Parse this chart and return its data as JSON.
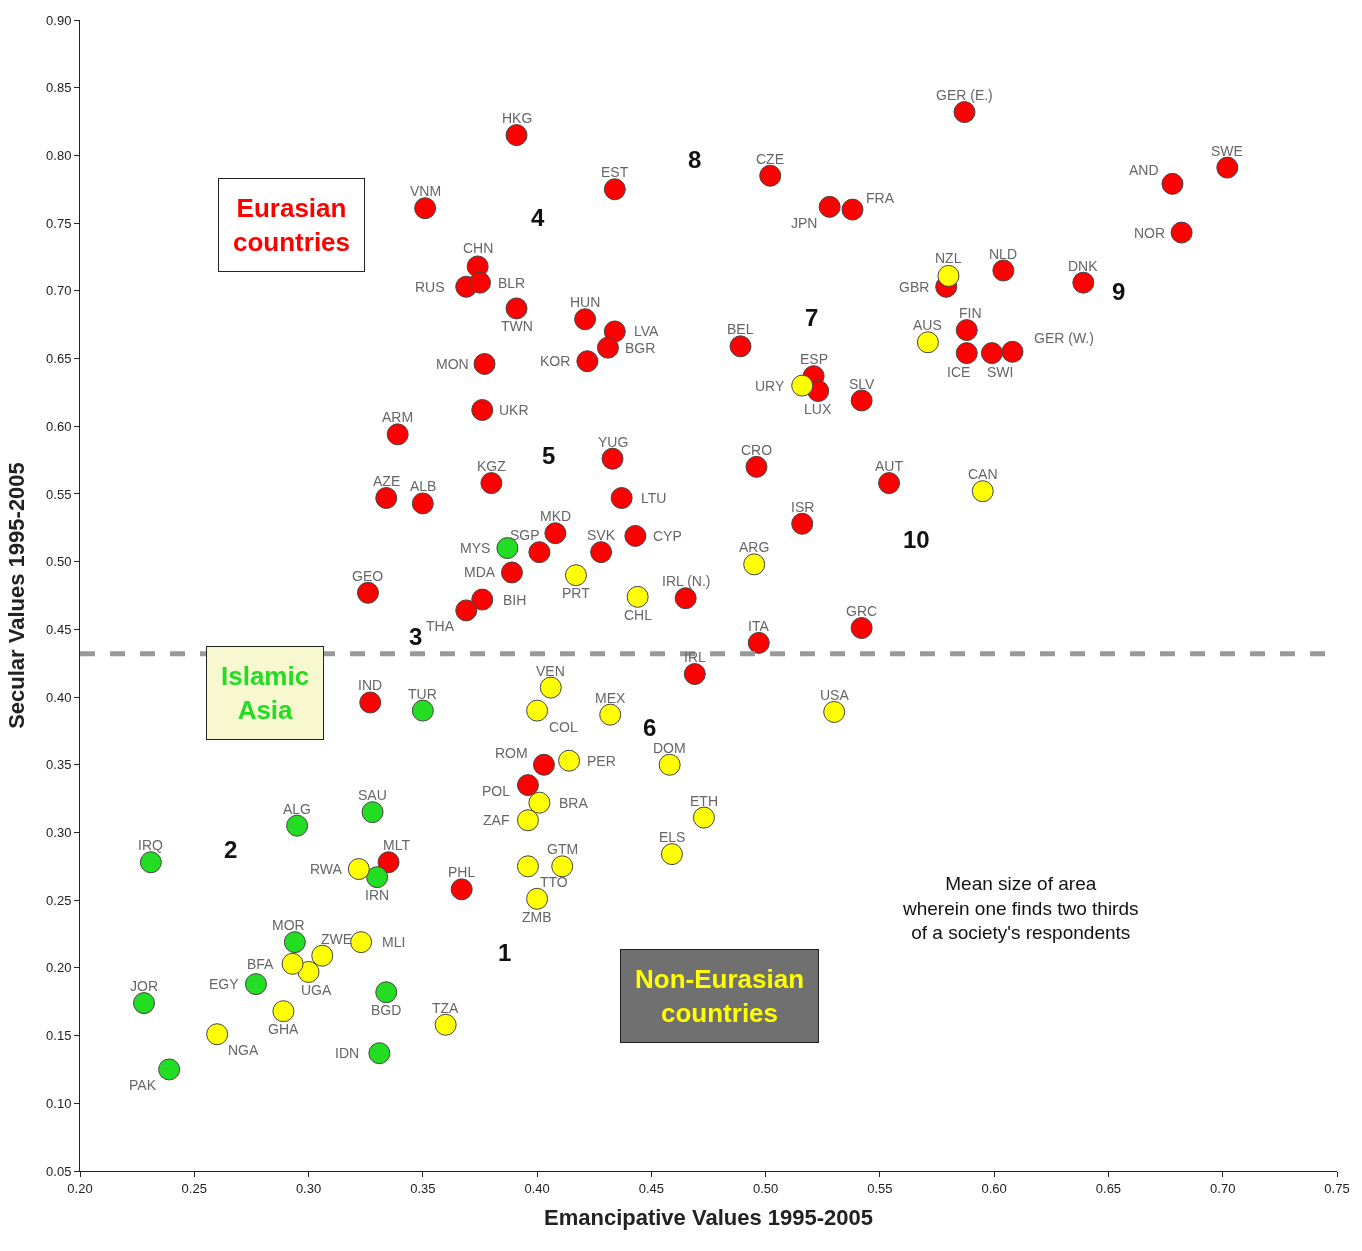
{
  "chart_data": {
    "type": "scatter",
    "xlabel": "Emancipative Values 1995-2005",
    "ylabel": "Secular Values 1995-2005",
    "xlim": [
      0.2,
      0.75
    ],
    "ylim": [
      0.05,
      0.9
    ],
    "xticks": [
      {
        "value": 0.2,
        "label": "0.20"
      },
      {
        "value": 0.25,
        "label": "0.25"
      },
      {
        "value": 0.3,
        "label": "0.30"
      },
      {
        "value": 0.35,
        "label": "0.35"
      },
      {
        "value": 0.4,
        "label": "0.40"
      },
      {
        "value": 0.45,
        "label": "0.45"
      },
      {
        "value": 0.5,
        "label": "0.50"
      },
      {
        "value": 0.55,
        "label": "0.55"
      },
      {
        "value": 0.6,
        "label": "0.60"
      },
      {
        "value": 0.65,
        "label": "0.65"
      },
      {
        "value": 0.7,
        "label": "0.70"
      },
      {
        "value": 0.75,
        "label": "0.75"
      }
    ],
    "yticks": [
      {
        "value": 0.05,
        "label": "0.05"
      },
      {
        "value": 0.1,
        "label": "0.10"
      },
      {
        "value": 0.15,
        "label": "0.15"
      },
      {
        "value": 0.2,
        "label": "0.20"
      },
      {
        "value": 0.25,
        "label": "0.25"
      },
      {
        "value": 0.3,
        "label": "0.30"
      },
      {
        "value": 0.35,
        "label": "0.35"
      },
      {
        "value": 0.4,
        "label": "0.40"
      },
      {
        "value": 0.45,
        "label": "0.45"
      },
      {
        "value": 0.5,
        "label": "0.50"
      },
      {
        "value": 0.55,
        "label": "0.55"
      },
      {
        "value": 0.6,
        "label": "0.60"
      },
      {
        "value": 0.65,
        "label": "0.65"
      },
      {
        "value": 0.7,
        "label": "0.70"
      },
      {
        "value": 0.75,
        "label": "0.75"
      },
      {
        "value": 0.8,
        "label": "0.80"
      },
      {
        "value": 0.85,
        "label": "0.85"
      },
      {
        "value": 0.9,
        "label": "0.90"
      }
    ],
    "marker": "circle",
    "legend": false,
    "series": [
      {
        "name": "Eurasian countries",
        "color": "#ff0000",
        "x": [
          0.391,
          0.434,
          0.502,
          0.587,
          0.528,
          0.538,
          0.351,
          0.374,
          0.369,
          0.375,
          0.391,
          0.421,
          0.434,
          0.431,
          0.422,
          0.377,
          0.376,
          0.339,
          0.433,
          0.38,
          0.334,
          0.35,
          0.437,
          0.408,
          0.428,
          0.401,
          0.389,
          0.376,
          0.369,
          0.326,
          0.443,
          0.465,
          0.516,
          0.542,
          0.497,
          0.554,
          0.496,
          0.489,
          0.521,
          0.523,
          0.542,
          0.579,
          0.588,
          0.588,
          0.599,
          0.608,
          0.604,
          0.639,
          0.678,
          0.702,
          0.682,
          0.469,
          0.403,
          0.396,
          0.367,
          0.327,
          0.335
        ],
        "values": [
          0.815,
          0.775,
          0.785,
          0.832,
          0.762,
          0.76,
          0.761,
          0.718,
          0.703,
          0.706,
          0.687,
          0.679,
          0.67,
          0.658,
          0.648,
          0.646,
          0.612,
          0.594,
          0.576,
          0.558,
          0.547,
          0.543,
          0.547,
          0.521,
          0.507,
          0.507,
          0.492,
          0.472,
          0.464,
          0.477,
          0.519,
          0.473,
          0.528,
          0.451,
          0.44,
          0.558,
          0.57,
          0.659,
          0.637,
          0.626,
          0.619,
          0.703,
          0.671,
          0.654,
          0.654,
          0.655,
          0.715,
          0.706,
          0.779,
          0.791,
          0.743,
          0.417,
          0.35,
          0.335,
          0.258,
          0.396,
          0.278
        ]
      },
      {
        "name": "Islamic Asia",
        "color": "#22dd22",
        "x": [
          0.387,
          0.35,
          0.328,
          0.295,
          0.231,
          0.33,
          0.294,
          0.277,
          0.228,
          0.334,
          0.331,
          0.239
        ],
        "values": [
          0.51,
          0.39,
          0.315,
          0.305,
          0.278,
          0.267,
          0.219,
          0.188,
          0.174,
          0.182,
          0.137,
          0.125
        ]
      },
      {
        "name": "Non-Eurasian countries",
        "color": "#ffff00",
        "x": [
          0.417,
          0.444,
          0.495,
          0.595,
          0.516,
          0.58,
          0.571,
          0.53,
          0.406,
          0.4,
          0.432,
          0.414,
          0.401,
          0.396,
          0.458,
          0.473,
          0.459,
          0.411,
          0.396,
          0.4,
          0.322,
          0.306,
          0.3,
          0.293,
          0.323,
          0.289,
          0.36,
          0.26
        ],
        "values": [
          0.49,
          0.474,
          0.498,
          0.552,
          0.63,
          0.711,
          0.662,
          0.389,
          0.407,
          0.39,
          0.387,
          0.353,
          0.322,
          0.309,
          0.35,
          0.311,
          0.284,
          0.275,
          0.275,
          0.251,
          0.273,
          0.209,
          0.197,
          0.203,
          0.219,
          0.168,
          0.158,
          0.151
        ]
      }
    ],
    "ref_lines": [
      {
        "axis": "y",
        "value": 0.432,
        "color": "#999999",
        "line_style": "dashed"
      }
    ],
    "annotations": [
      {
        "text": "HKG",
        "x": 0.391,
        "y": 0.815
      },
      {
        "text": "EST",
        "x": 0.434,
        "y": 0.775
      },
      {
        "text": "CZE",
        "x": 0.502,
        "y": 0.785
      },
      {
        "text": "GER (E.)",
        "x": 0.587,
        "y": 0.832
      },
      {
        "text": "JPN",
        "x": 0.528,
        "y": 0.762
      },
      {
        "text": "FRA",
        "x": 0.538,
        "y": 0.76
      },
      {
        "text": "VNM",
        "x": 0.351,
        "y": 0.761
      },
      {
        "text": "CHN",
        "x": 0.374,
        "y": 0.718
      },
      {
        "text": "RUS",
        "x": 0.369,
        "y": 0.703
      },
      {
        "text": "BLR",
        "x": 0.375,
        "y": 0.706
      },
      {
        "text": "TWN",
        "x": 0.391,
        "y": 0.687
      },
      {
        "text": "HUN",
        "x": 0.421,
        "y": 0.679
      },
      {
        "text": "LVA",
        "x": 0.434,
        "y": 0.67
      },
      {
        "text": "BGR",
        "x": 0.431,
        "y": 0.658
      },
      {
        "text": "KOR",
        "x": 0.422,
        "y": 0.648
      },
      {
        "text": "MON",
        "x": 0.377,
        "y": 0.646
      },
      {
        "text": "UKR",
        "x": 0.376,
        "y": 0.612
      },
      {
        "text": "ARM",
        "x": 0.339,
        "y": 0.594
      },
      {
        "text": "YUG",
        "x": 0.433,
        "y": 0.576
      },
      {
        "text": "KGZ",
        "x": 0.38,
        "y": 0.558
      },
      {
        "text": "AZE",
        "x": 0.334,
        "y": 0.547
      },
      {
        "text": "ALB",
        "x": 0.35,
        "y": 0.543
      },
      {
        "text": "LTU",
        "x": 0.437,
        "y": 0.547
      },
      {
        "text": "MKD",
        "x": 0.408,
        "y": 0.521
      },
      {
        "text": "SVK",
        "x": 0.428,
        "y": 0.507
      },
      {
        "text": "SGP",
        "x": 0.401,
        "y": 0.507
      },
      {
        "text": "MDA",
        "x": 0.389,
        "y": 0.492
      },
      {
        "text": "BIH",
        "x": 0.376,
        "y": 0.472
      },
      {
        "text": "THA",
        "x": 0.369,
        "y": 0.464
      },
      {
        "text": "GEO",
        "x": 0.326,
        "y": 0.477
      },
      {
        "text": "CYP",
        "x": 0.443,
        "y": 0.519
      },
      {
        "text": "IRL (N.)",
        "x": 0.465,
        "y": 0.473
      },
      {
        "text": "ISR",
        "x": 0.516,
        "y": 0.528
      },
      {
        "text": "GRC",
        "x": 0.542,
        "y": 0.451
      },
      {
        "text": "ITA",
        "x": 0.497,
        "y": 0.44
      },
      {
        "text": "AUT",
        "x": 0.554,
        "y": 0.558
      },
      {
        "text": "CRO",
        "x": 0.496,
        "y": 0.57
      },
      {
        "text": "BEL",
        "x": 0.489,
        "y": 0.659
      },
      {
        "text": "ESP",
        "x": 0.521,
        "y": 0.637
      },
      {
        "text": "LUX",
        "x": 0.523,
        "y": 0.626
      },
      {
        "text": "SLV",
        "x": 0.542,
        "y": 0.619
      },
      {
        "text": "GBR",
        "x": 0.579,
        "y": 0.703
      },
      {
        "text": "FIN",
        "x": 0.588,
        "y": 0.671
      },
      {
        "text": "ICE",
        "x": 0.588,
        "y": 0.654
      },
      {
        "text": "SWI",
        "x": 0.599,
        "y": 0.654
      },
      {
        "text": "GER (W.)",
        "x": 0.608,
        "y": 0.655
      },
      {
        "text": "NLD",
        "x": 0.604,
        "y": 0.715
      },
      {
        "text": "DNK",
        "x": 0.639,
        "y": 0.706
      },
      {
        "text": "AND",
        "x": 0.678,
        "y": 0.779
      },
      {
        "text": "SWE",
        "x": 0.702,
        "y": 0.791
      },
      {
        "text": "NOR",
        "x": 0.682,
        "y": 0.743
      },
      {
        "text": "IRL",
        "x": 0.469,
        "y": 0.417
      },
      {
        "text": "ROM",
        "x": 0.403,
        "y": 0.35
      },
      {
        "text": "POL",
        "x": 0.396,
        "y": 0.335
      },
      {
        "text": "PHL",
        "x": 0.367,
        "y": 0.258
      },
      {
        "text": "IND",
        "x": 0.327,
        "y": 0.396
      },
      {
        "text": "MLT",
        "x": 0.335,
        "y": 0.278
      },
      {
        "text": "MYS",
        "x": 0.387,
        "y": 0.51
      },
      {
        "text": "TUR",
        "x": 0.35,
        "y": 0.39
      },
      {
        "text": "SAU",
        "x": 0.328,
        "y": 0.315
      },
      {
        "text": "ALG",
        "x": 0.295,
        "y": 0.305
      },
      {
        "text": "IRQ",
        "x": 0.231,
        "y": 0.278
      },
      {
        "text": "IRN",
        "x": 0.33,
        "y": 0.267
      },
      {
        "text": "MOR",
        "x": 0.294,
        "y": 0.219
      },
      {
        "text": "EGY",
        "x": 0.277,
        "y": 0.188
      },
      {
        "text": "JOR",
        "x": 0.228,
        "y": 0.174
      },
      {
        "text": "BGD",
        "x": 0.334,
        "y": 0.182
      },
      {
        "text": "IDN",
        "x": 0.331,
        "y": 0.137
      },
      {
        "text": "PAK",
        "x": 0.239,
        "y": 0.125
      },
      {
        "text": "PRT",
        "x": 0.417,
        "y": 0.49
      },
      {
        "text": "CHL",
        "x": 0.444,
        "y": 0.474
      },
      {
        "text": "ARG",
        "x": 0.495,
        "y": 0.498
      },
      {
        "text": "CAN",
        "x": 0.595,
        "y": 0.552
      },
      {
        "text": "URY",
        "x": 0.516,
        "y": 0.63
      },
      {
        "text": "NZL",
        "x": 0.58,
        "y": 0.711
      },
      {
        "text": "AUS",
        "x": 0.571,
        "y": 0.662
      },
      {
        "text": "USA",
        "x": 0.53,
        "y": 0.389
      },
      {
        "text": "VEN",
        "x": 0.406,
        "y": 0.407
      },
      {
        "text": "COL",
        "x": 0.4,
        "y": 0.39
      },
      {
        "text": "MEX",
        "x": 0.432,
        "y": 0.387
      },
      {
        "text": "PER",
        "x": 0.414,
        "y": 0.353
      },
      {
        "text": "BRA",
        "x": 0.401,
        "y": 0.322
      },
      {
        "text": "ZAF",
        "x": 0.396,
        "y": 0.309
      },
      {
        "text": "DOM",
        "x": 0.458,
        "y": 0.35
      },
      {
        "text": "ETH",
        "x": 0.473,
        "y": 0.311
      },
      {
        "text": "ELS",
        "x": 0.459,
        "y": 0.284
      },
      {
        "text": "GTM",
        "x": 0.411,
        "y": 0.275
      },
      {
        "text": "TTO",
        "x": 0.396,
        "y": 0.275
      },
      {
        "text": "ZMB",
        "x": 0.4,
        "y": 0.251
      },
      {
        "text": "RWA",
        "x": 0.322,
        "y": 0.273
      },
      {
        "text": "ZWE",
        "x": 0.306,
        "y": 0.209
      },
      {
        "text": "UGA",
        "x": 0.3,
        "y": 0.197
      },
      {
        "text": "BFA",
        "x": 0.293,
        "y": 0.203
      },
      {
        "text": "MLI",
        "x": 0.323,
        "y": 0.219
      },
      {
        "text": "GHA",
        "x": 0.289,
        "y": 0.168
      },
      {
        "text": "TZA",
        "x": 0.36,
        "y": 0.158
      },
      {
        "text": "NGA",
        "x": 0.26,
        "y": 0.151
      },
      "1",
      "2",
      "3",
      "4",
      "5",
      "6",
      "7",
      "8",
      "9",
      "10",
      "Mean size of area\nwherein one finds two thirds\nof a society's respondents"
    ]
  }
}
